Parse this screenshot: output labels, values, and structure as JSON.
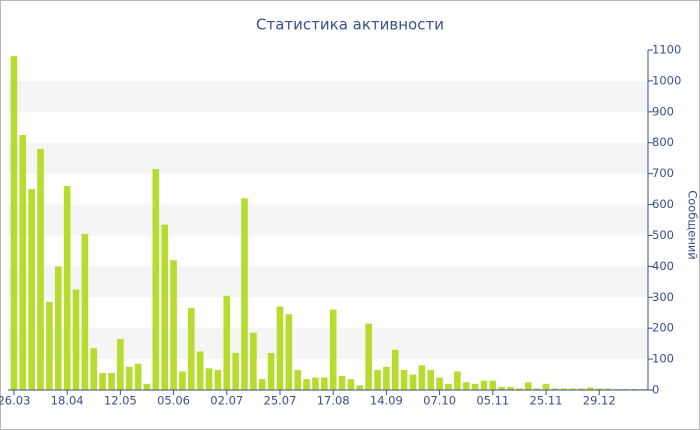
{
  "chart_data": {
    "type": "bar",
    "title": "Статистика активности",
    "y_label": "Сообщений",
    "categories": [
      "26.03",
      null,
      null,
      null,
      null,
      null,
      "18.04",
      null,
      null,
      null,
      null,
      null,
      "12.05",
      null,
      null,
      null,
      null,
      null,
      "05.06",
      null,
      null,
      null,
      null,
      null,
      "02.07",
      null,
      null,
      null,
      null,
      null,
      "25.07",
      null,
      null,
      null,
      null,
      null,
      "17.08",
      null,
      null,
      null,
      null,
      null,
      "14.09",
      null,
      null,
      null,
      null,
      null,
      "07.10",
      null,
      null,
      null,
      null,
      null,
      "05.11",
      null,
      null,
      null,
      null,
      null,
      "25.11",
      null,
      null,
      null,
      null,
      null,
      "29.12",
      null,
      null,
      null,
      null,
      null
    ],
    "values": [
      1080,
      825,
      650,
      780,
      285,
      400,
      660,
      325,
      505,
      135,
      55,
      55,
      165,
      75,
      85,
      20,
      715,
      535,
      420,
      60,
      265,
      125,
      70,
      65,
      305,
      120,
      620,
      185,
      35,
      120,
      270,
      245,
      65,
      35,
      40,
      40,
      260,
      45,
      35,
      15,
      215,
      65,
      75,
      130,
      65,
      50,
      80,
      65,
      40,
      20,
      60,
      25,
      20,
      30,
      30,
      10,
      10,
      5,
      25,
      5,
      20,
      5,
      5,
      5,
      5,
      8,
      5,
      5,
      3,
      3,
      3,
      3
    ],
    "color": "#b6dc2e",
    "ylim": [
      0,
      1100
    ],
    "yticks": [
      0,
      100,
      200,
      300,
      400,
      500,
      600,
      700,
      800,
      900,
      1000,
      1100
    ],
    "stripes": true
  }
}
